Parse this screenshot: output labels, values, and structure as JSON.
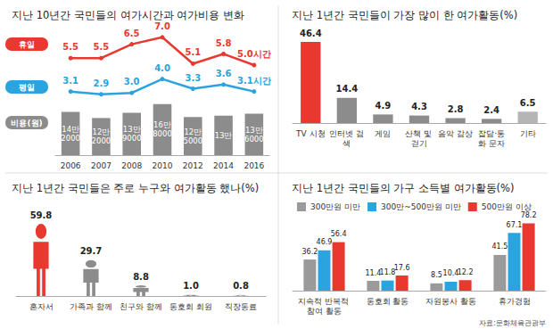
{
  "chart_data": [
    {
      "type": "line",
      "title": "지난 10년간 국민들의 여가시간과 여가비용 변화",
      "categories": [
        "2006",
        "2007",
        "2008",
        "2010",
        "2012",
        "2014",
        "2016"
      ],
      "series": [
        {
          "name": "휴일",
          "type": "line",
          "color": "#e8382f",
          "marker": "circle",
          "values": [
            5.5,
            5.5,
            6.5,
            7.0,
            5.1,
            5.8,
            5.0
          ],
          "value_labels": [
            "5.5",
            "5.5",
            "6.5",
            "7.0",
            "5.1",
            "5.8",
            "5.0시간"
          ]
        },
        {
          "name": "평일",
          "type": "line",
          "color": "#2aa3de",
          "marker": "circle",
          "values": [
            3.1,
            2.9,
            3.0,
            4.0,
            3.3,
            3.6,
            3.1
          ],
          "value_labels": [
            "3.1",
            "2.9",
            "3.0",
            "4.0",
            "3.3",
            "3.6",
            "3.1시간"
          ]
        },
        {
          "name": "비용(원)",
          "type": "bar",
          "axis": "y2",
          "color": "#8c8c8c",
          "values": [
            142000,
            122000,
            139000,
            168000,
            125000,
            130000,
            136000
          ],
          "value_labels": [
            "14만 2000",
            "12만 2000",
            "13만 9000",
            "16만 8000",
            "12만 5000",
            "13만",
            "13만 6000"
          ]
        }
      ],
      "ylim": [
        2.5,
        7.5
      ],
      "y2lim": [
        0,
        170000
      ],
      "data_labels": true,
      "tick_labels": "x",
      "grid": false
    },
    {
      "type": "bar",
      "title": "지난 1년간 국민들이 가장 많이 한 여가활동(%)",
      "categories": [
        "TV 시청",
        "인터넷 검색",
        "게임",
        "산책 및 걷기",
        "음악 감상",
        "잡담·통화 문자",
        "기타"
      ],
      "values": [
        46.4,
        14.4,
        4.9,
        4.3,
        2.8,
        2.4,
        6.5
      ],
      "colors": [
        "#e8382f",
        "#8c8c8c",
        "#8c8c8c",
        "#8c8c8c",
        "#8c8c8c",
        "#8c8c8c",
        "#b5b5b5"
      ],
      "ylim": [
        0,
        50
      ],
      "data_labels": true,
      "tick_labels": "x",
      "grid": false
    },
    {
      "type": "bar",
      "title": "지난 1년간 국민들은 주로 누구와 여가활동 했나(%)",
      "categories": [
        "혼자서",
        "가족과 함께",
        "친구와 함께",
        "동호회 회원",
        "직장동료"
      ],
      "values": [
        59.8,
        29.7,
        8.8,
        1.0,
        0.8
      ],
      "value_labels": [
        "59.8",
        "29.7",
        "8.8",
        "1.0",
        "0.8"
      ],
      "colors": [
        "#e8382f",
        "#8c8c8c",
        "#8c8c8c",
        "#8c8c8c",
        "#8c8c8c"
      ],
      "marker": "person",
      "ylim": [
        0,
        65
      ],
      "data_labels": true,
      "tick_labels": "x",
      "grid": false
    },
    {
      "type": "bar",
      "title": "지난 1년간 국민들의 가구 소득별 여가활동(%)",
      "categories": [
        "지속적 반복적 참여 활동",
        "동호회 활동",
        "자원봉사 활동",
        "휴가경험"
      ],
      "series": [
        {
          "name": "300만원 미만",
          "color": "#9a9a9a",
          "values": [
            36.2,
            11.4,
            8.5,
            41.5
          ]
        },
        {
          "name": "300만~500만원 미만",
          "color": "#2aa3de",
          "values": [
            46.9,
            11.8,
            10.4,
            67.1
          ]
        },
        {
          "name": "500만원 이상",
          "color": "#e8382f",
          "values": [
            56.4,
            17.6,
            12.2,
            78.2
          ]
        }
      ],
      "ylim": [
        0,
        85
      ],
      "legend": "top",
      "data_labels": true,
      "tick_labels": "x",
      "grid": false,
      "annotations": [
        "자료:문화체육관광부"
      ]
    }
  ]
}
